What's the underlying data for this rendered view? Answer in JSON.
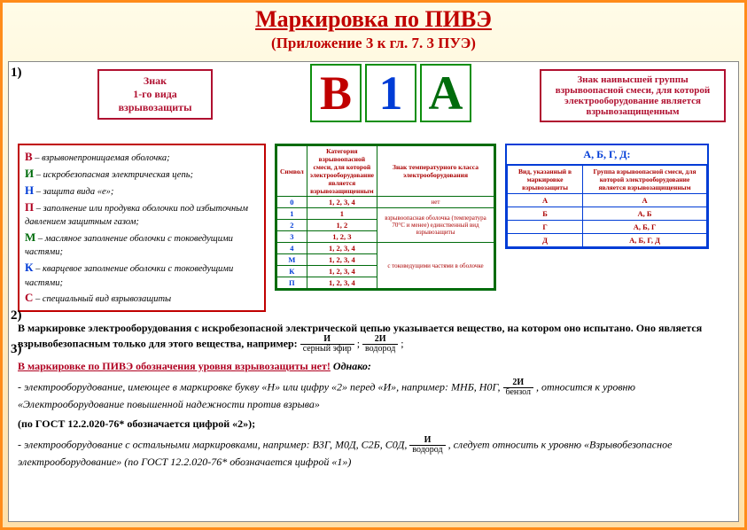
{
  "title": "Маркировка по ПИВЭ",
  "subtitle": "(Приложение 3 к гл. 7. 3 ПУЭ)",
  "numbers": {
    "n1": "1)",
    "n2": "2)",
    "n3": "3)"
  },
  "label_left": "Знак\n1-го вида\nвзрывозащиты",
  "label_right": "Знак наивысшей группы взрывоопасной смеси, для которой электрооборудование является взрывозащищенным",
  "big": {
    "b1": "В",
    "b2": "1",
    "b3": "А"
  },
  "colors": {
    "red": "#c00000",
    "blue": "#003cd6",
    "green": "#006c0c",
    "border_orange": "#ff8c1a",
    "bg_grad_top": "#fffce8",
    "bg_grad_bot": "#ffe0a8"
  },
  "left_list": [
    {
      "sym": "В",
      "cls": "lr",
      "txt": " – взрывонепроницаемая оболочка;"
    },
    {
      "sym": "И",
      "cls": "lg",
      "txt": " – искробезопасная электрическая цепь;"
    },
    {
      "sym": "Н",
      "cls": "lb",
      "txt": " – защита вида «е»;"
    },
    {
      "sym": "П",
      "cls": "lr",
      "txt": " – заполнение или продувка оболочки под избыточным давлением защитным газом;"
    },
    {
      "sym": "М",
      "cls": "lg",
      "txt": " – масляное заполнение оболочки с токоведущими частями;"
    },
    {
      "sym": "К",
      "cls": "lb",
      "txt": " – кварцевое заполнение оболочки с токоведущими частями;"
    },
    {
      "sym": "С",
      "cls": "lr",
      "txt": " – специальный вид взрывозащиты"
    }
  ],
  "mid_table": {
    "headers": [
      "Символ",
      "Категория взрывоопасной смеси, для которой электрооборудование является взрывозащищенным",
      "Знак температурного класса электрооборудования"
    ],
    "rows": [
      {
        "s": "0",
        "v": "1, 2, 3, 4",
        "d": "нет"
      },
      {
        "s": "1",
        "v": "1",
        "d": "взрывоопасная оболочка (температура 70°С и менее)"
      },
      {
        "s": "2",
        "v": "1, 2",
        "d": ""
      },
      {
        "s": "3",
        "v": "1, 2, 3",
        "d": "единственный вид взрывозащиты"
      },
      {
        "s": "4",
        "v": "1, 2, 3, 4",
        "d": ""
      },
      {
        "s": "М",
        "v": "1, 2, 3, 4",
        "d": "с токоведущими частями в оболочке"
      },
      {
        "s": "К",
        "v": "1, 2, 3, 4",
        "d": ""
      },
      {
        "s": "П",
        "v": "1, 2, 3, 4",
        "d": ""
      }
    ]
  },
  "right_table": {
    "header": "А, Б, Г, Д:",
    "cols": [
      "Вид, указанный в маркировке взрывозащиты",
      "Группа взрывоопасной смеси, для которой электрооборудование является взрывозащищенным"
    ],
    "rows": [
      [
        "А",
        "А"
      ],
      [
        "Б",
        "А, Б"
      ],
      [
        "Г",
        "А, Б, Г"
      ],
      [
        "Д",
        "А, Б, Г, Д"
      ]
    ]
  },
  "para2_a": "В маркировке электрооборудования с искробезопасной электрической цепью указывается вещество, на котором оно испытано. Оно является взрывобезопасным только для этого вещества, например: ",
  "frac1": {
    "t": "И",
    "b": "серный эфир"
  },
  "frac2": {
    "t": "2И",
    "b": "водород"
  },
  "para3_head": "В маркировке по ПИВЭ обозначения уровня взрывозащиты нет!",
  "para3_however": "  Однако:",
  "para3_l1a": "- электрооборудование, имеющее в маркировке букву «Н» или цифру «2» перед «И», например: МНБ, Н0Г, ",
  "frac3": {
    "t": "2И",
    "b": "бензол"
  },
  "para3_l1b": ", относится к уровню «Электрооборудование повышенной надежности против взрыва»",
  "para3_l2": "(по ГОСТ 12.2.020-76* обозначается цифрой «2»);",
  "para3_l3a": "- электрооборудование с остальными маркировками, например: В3Г, М0Д, С2Б, С0Д, ",
  "frac4": {
    "t": "И",
    "b": "водород"
  },
  "para3_l3b": ", следует относить к уровню «Взрывобезопасное электрооборудование» (по ГОСТ 12.2.020-76* обозначается цифрой «1»)"
}
